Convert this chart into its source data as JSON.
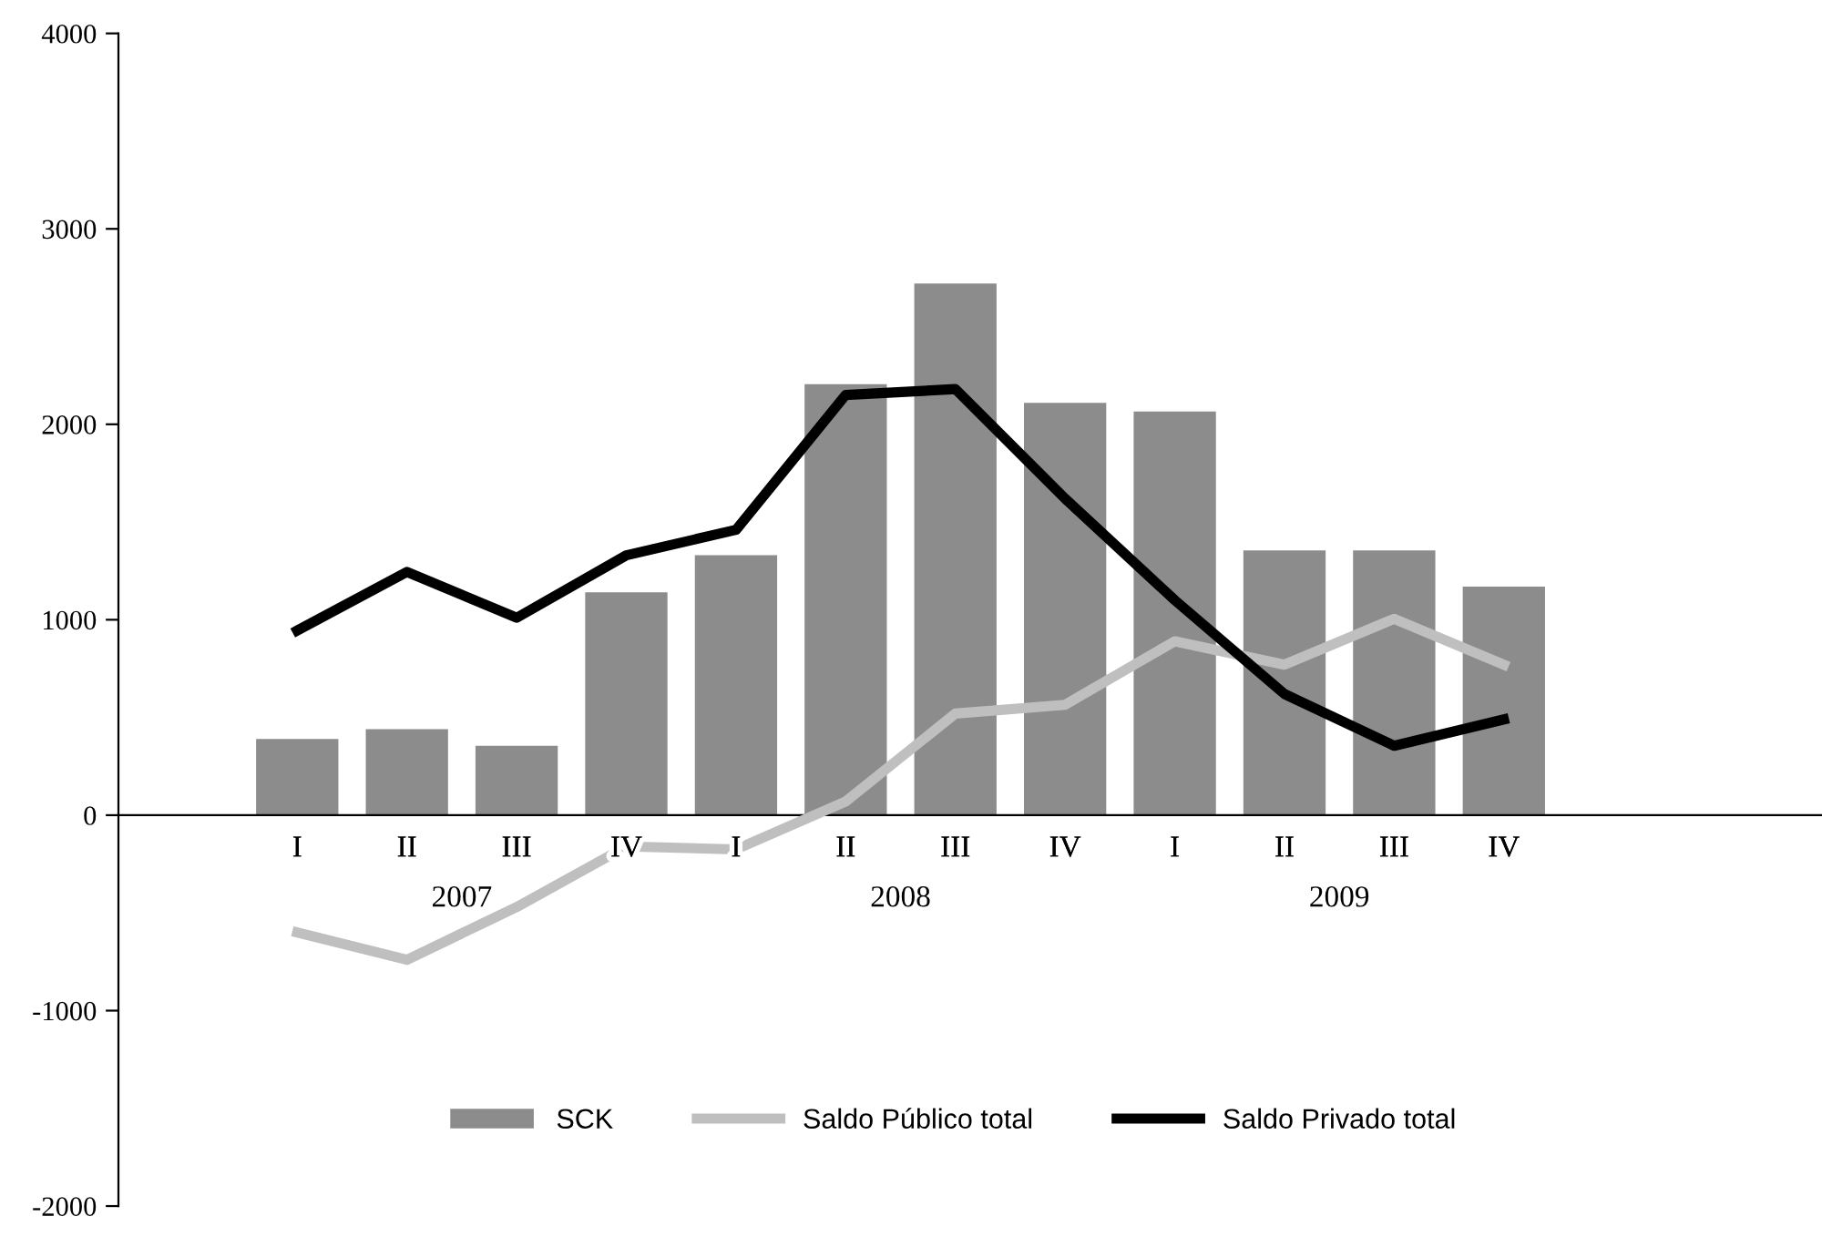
{
  "chart_data": {
    "type": "bar",
    "categories": [
      "I",
      "II",
      "III",
      "IV",
      "I",
      "II",
      "III",
      "IV",
      "I",
      "II",
      "III",
      "IV"
    ],
    "series": [
      {
        "name": "SCK",
        "color": "#8c8c8c",
        "values": [
          390,
          440,
          355,
          1140,
          1330,
          2205,
          2720,
          2110,
          2065,
          1355,
          1355,
          1170
        ]
      },
      {
        "name": "Saldo Público total",
        "type": "line",
        "color": "#bfbfbf",
        "values": [
          -600,
          -740,
          -470,
          -160,
          -175,
          70,
          520,
          565,
          890,
          770,
          1005,
          770
        ]
      },
      {
        "name": "Saldo Privado total",
        "type": "line",
        "color": "#000000",
        "values": [
          945,
          1245,
          1010,
          1330,
          1460,
          2150,
          2180,
          1620,
          1100,
          620,
          355,
          490
        ]
      }
    ],
    "annotations": [
      "2007",
      "2008",
      "2009"
    ],
    "ylim": [
      -2000,
      4000
    ],
    "yticks": [
      -2000,
      -1000,
      0,
      1000,
      2000,
      3000,
      4000
    ],
    "grid": false,
    "legend": "bottom",
    "marker": "none",
    "line_style": "solid"
  }
}
